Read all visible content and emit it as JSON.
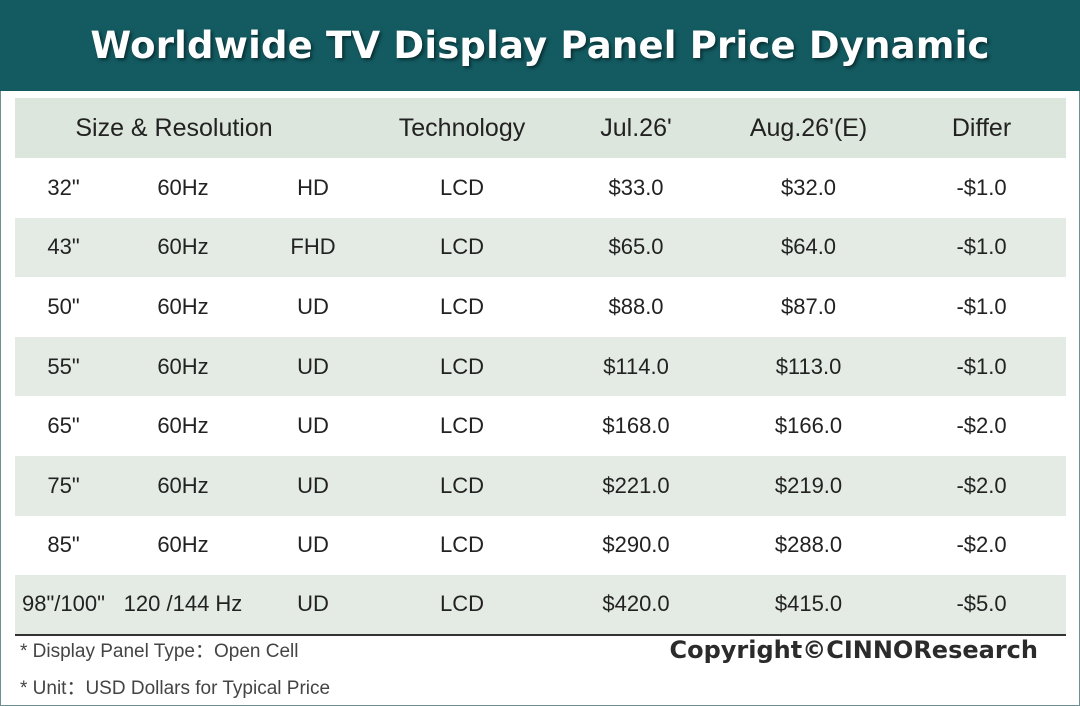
{
  "chart_data": {
    "type": "table",
    "title": "Worldwide TV Display Panel Price Dynamic",
    "columns": [
      "Size & Resolution",
      "Technology",
      "Jul.26'",
      "Aug.26'(E)",
      "Differ"
    ],
    "rows": [
      {
        "size": "32\"",
        "rate": "60Hz",
        "res": "HD",
        "tech": "LCD",
        "jul": "$33.0",
        "aug": "$32.0",
        "diff": "-$1.0"
      },
      {
        "size": "43\"",
        "rate": "60Hz",
        "res": "FHD",
        "tech": "LCD",
        "jul": "$65.0",
        "aug": "$64.0",
        "diff": "-$1.0"
      },
      {
        "size": "50\"",
        "rate": "60Hz",
        "res": "UD",
        "tech": "LCD",
        "jul": "$88.0",
        "aug": "$87.0",
        "diff": "-$1.0"
      },
      {
        "size": "55\"",
        "rate": "60Hz",
        "res": "UD",
        "tech": "LCD",
        "jul": "$114.0",
        "aug": "$113.0",
        "diff": "-$1.0"
      },
      {
        "size": "65\"",
        "rate": "60Hz",
        "res": "UD",
        "tech": "LCD",
        "jul": "$168.0",
        "aug": "$166.0",
        "diff": "-$2.0"
      },
      {
        "size": "75\"",
        "rate": "60Hz",
        "res": "UD",
        "tech": "LCD",
        "jul": "$221.0",
        "aug": "$219.0",
        "diff": "-$2.0"
      },
      {
        "size": "85\"",
        "rate": "60Hz",
        "res": "UD",
        "tech": "LCD",
        "jul": "$290.0",
        "aug": "$288.0",
        "diff": "-$2.0"
      },
      {
        "size": "98\"/100\"",
        "rate": "120 /144 Hz",
        "res": "UD",
        "tech": "LCD",
        "jul": "$420.0",
        "aug": "$415.0",
        "diff": "-$5.0"
      }
    ]
  },
  "footnotes": {
    "panel_type": "* Display Panel Type：Open Cell",
    "unit": "* Unit：USD Dollars for Typical Price"
  },
  "copyright": "Copyright©CINNOResearch",
  "colors": {
    "banner": "#135b61",
    "header_row": "#dde6dc",
    "stripe": "#e4ebe4"
  }
}
